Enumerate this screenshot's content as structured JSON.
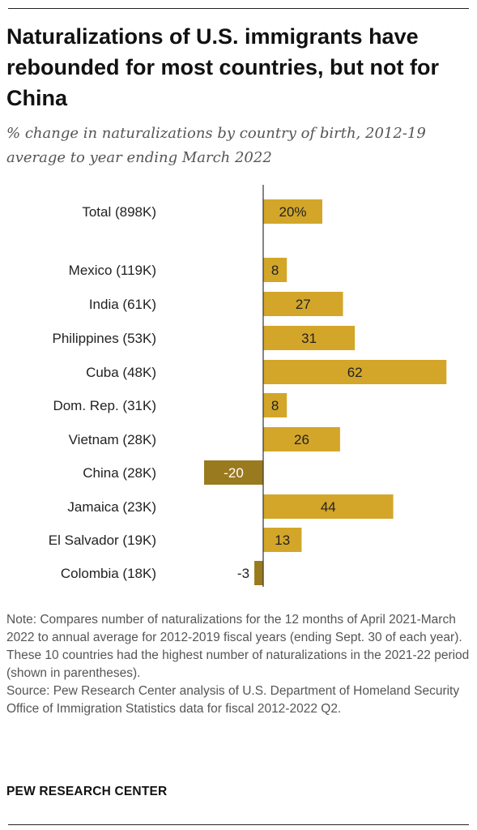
{
  "title": "Naturalizations of U.S. immigrants have rebounded for most countries, but not for China",
  "subtitle": "% change in naturalizations by country of birth, 2012-19 average to year ending March 2022",
  "note": "Note: Compares number of naturalizations for the 12 months of April 2021-March 2022 to annual average for 2012-2019 fiscal years (ending Sept. 30 of each year). These 10 countries had the highest number of naturalizations in the 2021-22 period (shown in parentheses).",
  "source": "Source: Pew Research Center analysis of U.S. Department of Homeland Security Office of Immigration Statistics data for fiscal 2012-2022 Q2.",
  "brand": "PEW RESEARCH CENTER",
  "colors": {
    "positive": "#D3A62A",
    "negative": "#9A7A1F",
    "axis": "#333333"
  },
  "chart_data": {
    "type": "bar",
    "orientation": "horizontal",
    "categories": [
      "Total (898K)",
      "Mexico (119K)",
      "India (61K)",
      "Philippines (53K)",
      "Cuba (48K)",
      "Dom. Rep. (31K)",
      "Vietnam (28K)",
      "China (28K)",
      "Jamaica (23K)",
      "El Salvador (19K)",
      "Colombia (18K)"
    ],
    "values": [
      20,
      8,
      27,
      31,
      62,
      8,
      26,
      -20,
      44,
      13,
      -3
    ],
    "labels": [
      "20%",
      "8",
      "27",
      "31",
      "62",
      "8",
      "26",
      "-20",
      "44",
      "13",
      "-3"
    ]
  }
}
